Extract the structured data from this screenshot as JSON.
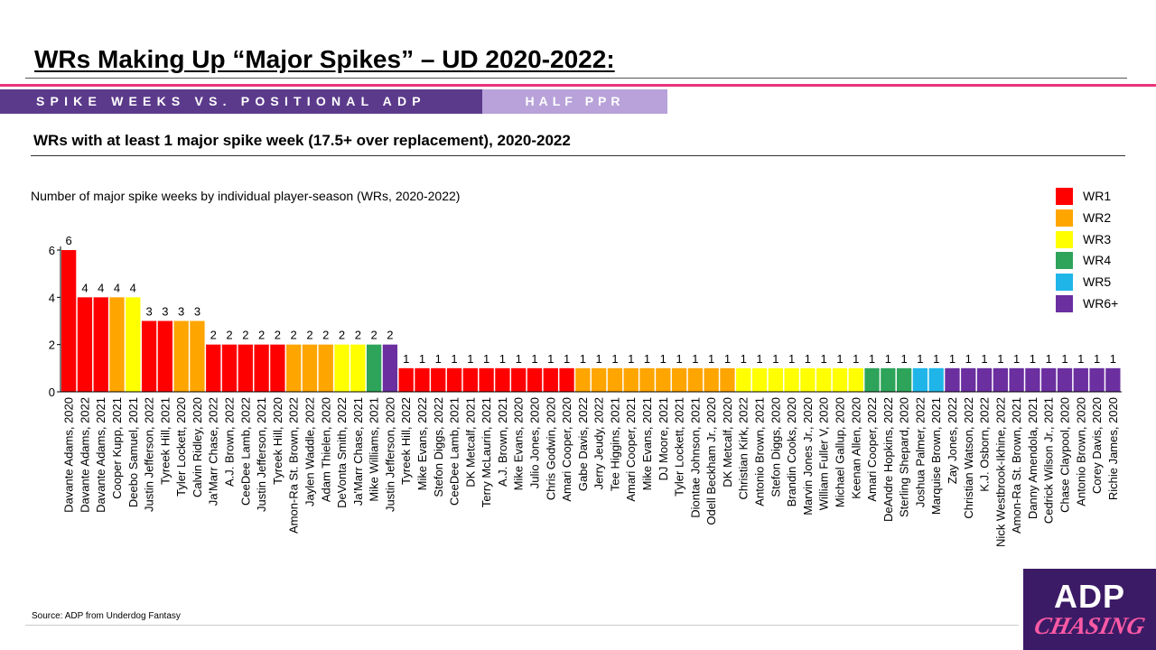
{
  "header": {
    "title": "WRs Making Up “Major Spikes” – UD 2020-2022:",
    "banner_left": "SPIKE WEEKS VS. POSITIONAL ADP",
    "banner_right": "HALF PPR",
    "subtitle": "WRs with at least 1 major spike week (17.5+ over replacement), 2020-2022"
  },
  "footer": {
    "source": "Source: ADP from Underdog Fantasy",
    "logo_top": "ADP",
    "logo_bottom": "CHASING"
  },
  "colors": {
    "banner_dark": "#5b3a8b",
    "banner_light": "#b8a2d9",
    "accent_pink": "#e8337a"
  },
  "chart_data": {
    "type": "bar",
    "title": "Number of major spike weeks by individual player-season (WRs, 2020-2022)",
    "xlabel": "",
    "ylabel": "",
    "ylim": [
      0,
      6
    ],
    "yticks": [
      0,
      2,
      4,
      6
    ],
    "grid": false,
    "legend_position": "top-right",
    "legend": [
      {
        "label": "WR1",
        "color": "#ff0000"
      },
      {
        "label": "WR2",
        "color": "#ffa500"
      },
      {
        "label": "WR3",
        "color": "#ffff00"
      },
      {
        "label": "WR4",
        "color": "#2ea35a"
      },
      {
        "label": "WR5",
        "color": "#1fb5e8"
      },
      {
        "label": "WR6+",
        "color": "#6b2fa0"
      }
    ],
    "categories": [
      "Davante Adams, 2020",
      "Davante Adams, 2022",
      "Davante Adams, 2021",
      "Cooper Kupp, 2021",
      "Deebo Samuel, 2021",
      "Justin Jefferson, 2022",
      "Tyreek Hill, 2021",
      "Tyler Lockett, 2020",
      "Calvin Ridley, 2020",
      "Ja'Marr Chase, 2022",
      "A.J. Brown, 2022",
      "CeeDee Lamb, 2022",
      "Justin Jefferson, 2021",
      "Tyreek Hill, 2020",
      "Amon-Ra St. Brown, 2022",
      "Jaylen Waddle, 2022",
      "Adam Thielen, 2020",
      "DeVonta Smith, 2022",
      "Ja'Marr Chase, 2021",
      "Mike Williams, 2021",
      "Justin Jefferson, 2020",
      "Tyreek Hill, 2022",
      "Mike Evans, 2022",
      "Stefon Diggs, 2022",
      "CeeDee Lamb, 2021",
      "DK Metcalf, 2021",
      "Terry McLaurin, 2021",
      "A.J. Brown, 2021",
      "Mike Evans, 2020",
      "Julio Jones, 2020",
      "Chris Godwin, 2020",
      "Amari Cooper, 2020",
      "Gabe Davis, 2022",
      "Jerry Jeudy, 2022",
      "Tee Higgins, 2021",
      "Amari Cooper, 2021",
      "Mike Evans, 2021",
      "DJ Moore, 2021",
      "Tyler Lockett, 2021",
      "Diontae Johnson, 2021",
      "Odell Beckham Jr., 2020",
      "DK Metcalf, 2020",
      "Christian Kirk, 2022",
      "Antonio Brown, 2021",
      "Stefon Diggs, 2020",
      "Brandin Cooks, 2020",
      "Marvin Jones Jr., 2020",
      "William Fuller V, 2020",
      "Michael Gallup, 2020",
      "Keenan Allen, 2020",
      "Amari Cooper, 2022",
      "DeAndre Hopkins, 2022",
      "Sterling Shepard, 2020",
      "Joshua Palmer, 2022",
      "Marquise Brown, 2021",
      "Zay Jones, 2022",
      "Christian Watson, 2022",
      "K.J. Osborn, 2022",
      "Nick Westbrook-Ikhine, 2022",
      "Amon-Ra St. Brown, 2021",
      "Danny Amendola, 2021",
      "Cedrick Wilson Jr., 2021",
      "Chase Claypool, 2020",
      "Antonio Brown, 2020",
      "Corey Davis, 2020",
      "Richie James, 2020"
    ],
    "values": [
      6,
      4,
      4,
      4,
      4,
      3,
      3,
      3,
      3,
      2,
      2,
      2,
      2,
      2,
      2,
      2,
      2,
      2,
      2,
      2,
      2,
      1,
      1,
      1,
      1,
      1,
      1,
      1,
      1,
      1,
      1,
      1,
      1,
      1,
      1,
      1,
      1,
      1,
      1,
      1,
      1,
      1,
      1,
      1,
      1,
      1,
      1,
      1,
      1,
      1,
      1,
      1,
      1,
      1,
      1,
      1,
      1,
      1,
      1,
      1,
      1,
      1,
      1,
      1,
      1,
      1
    ],
    "tiers": [
      "WR1",
      "WR1",
      "WR1",
      "WR2",
      "WR3",
      "WR1",
      "WR1",
      "WR2",
      "WR2",
      "WR1",
      "WR1",
      "WR1",
      "WR1",
      "WR1",
      "WR2",
      "WR2",
      "WR2",
      "WR3",
      "WR3",
      "WR4",
      "WR6+",
      "WR1",
      "WR1",
      "WR1",
      "WR1",
      "WR1",
      "WR1",
      "WR1",
      "WR1",
      "WR1",
      "WR1",
      "WR1",
      "WR2",
      "WR2",
      "WR2",
      "WR2",
      "WR2",
      "WR2",
      "WR2",
      "WR2",
      "WR2",
      "WR2",
      "WR3",
      "WR3",
      "WR3",
      "WR3",
      "WR3",
      "WR3",
      "WR3",
      "WR3",
      "WR4",
      "WR4",
      "WR4",
      "WR5",
      "WR5",
      "WR6+",
      "WR6+",
      "WR6+",
      "WR6+",
      "WR6+",
      "WR6+",
      "WR6+",
      "WR6+",
      "WR6+",
      "WR6+",
      "WR6+"
    ]
  }
}
